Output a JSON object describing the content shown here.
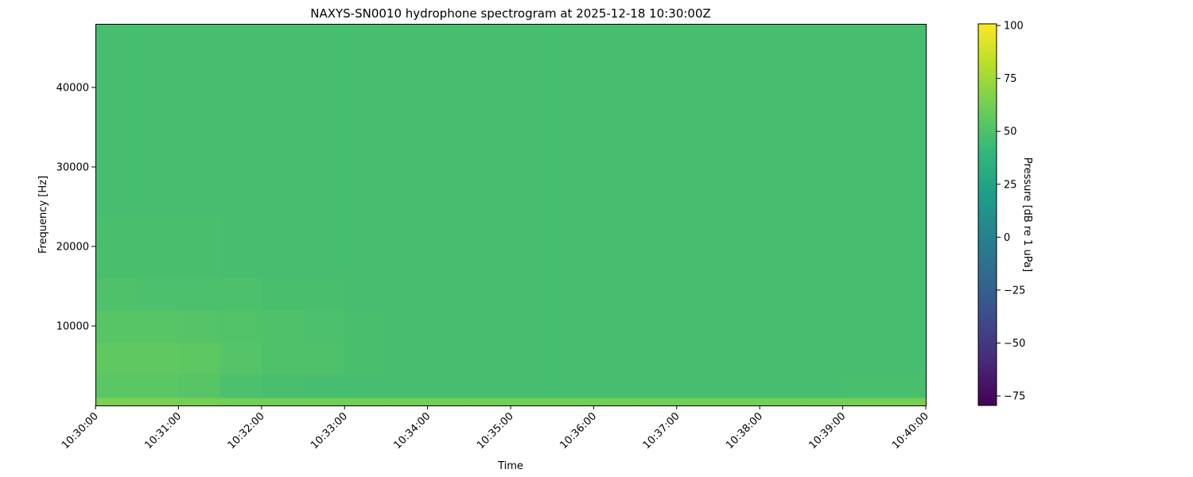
{
  "chart_data": {
    "type": "heatmap",
    "title": "NAXYS-SN0010 hydrophone spectrogram at 2025-12-18 10:30:00Z",
    "xlabel": "Time",
    "ylabel": "Frequency [Hz]",
    "colorbar_label": "Pressure [dB re 1 uPa]",
    "colormap": "viridis",
    "xlim": [
      "10:30:00",
      "10:40:00"
    ],
    "ylim": [
      0,
      48000
    ],
    "clim": [
      -79.5,
      100.8
    ],
    "x_ticks": [
      "10:30:00",
      "10:31:00",
      "10:32:00",
      "10:33:00",
      "10:34:00",
      "10:35:00",
      "10:36:00",
      "10:37:00",
      "10:38:00",
      "10:39:00",
      "10:40:00"
    ],
    "y_ticks": [
      10000,
      20000,
      30000,
      40000
    ],
    "colorbar_ticks": [
      -75,
      -50,
      -25,
      0,
      25,
      50,
      75,
      100
    ],
    "grid": false,
    "time_step_seconds": 30,
    "freq_edges_hz": [
      0,
      1000,
      4000,
      8000,
      12000,
      16000,
      24000,
      32000,
      40000,
      48000
    ],
    "values_db": [
      [
        64,
        64,
        63,
        62,
        62,
        62,
        62,
        62,
        62,
        62,
        62,
        62,
        62,
        62,
        62,
        62,
        62,
        62,
        63,
        63
      ],
      [
        54,
        54,
        53,
        49,
        48,
        47,
        47,
        47,
        47,
        47,
        47,
        47,
        47,
        47,
        47,
        47,
        47,
        47,
        48,
        48
      ],
      [
        56,
        56,
        55,
        52,
        50,
        50,
        48,
        47,
        47,
        47,
        47,
        47,
        47,
        47,
        47,
        47,
        47,
        47,
        47,
        47
      ],
      [
        53,
        53,
        52,
        51,
        50,
        49,
        48,
        47,
        47,
        47,
        47,
        47,
        47,
        47,
        47,
        47,
        47,
        47,
        47,
        47
      ],
      [
        50,
        49,
        49,
        49,
        48,
        48,
        47,
        47,
        47,
        47,
        47,
        47,
        47,
        47,
        47,
        47,
        47,
        47,
        47,
        47
      ],
      [
        48,
        48,
        48,
        47,
        47,
        47,
        47,
        47,
        47,
        47,
        47,
        47,
        47,
        47,
        47,
        47,
        47,
        47,
        47,
        47
      ],
      [
        47,
        47,
        47,
        47,
        47,
        47,
        47,
        47,
        47,
        47,
        47,
        47,
        47,
        47,
        47,
        47,
        47,
        47,
        47,
        47
      ],
      [
        47,
        47,
        47,
        47,
        47,
        47,
        47,
        47,
        47,
        47,
        47,
        47,
        47,
        47,
        47,
        47,
        47,
        47,
        47,
        47
      ],
      [
        47,
        47,
        47,
        47,
        47,
        47,
        47,
        47,
        47,
        47,
        47,
        47,
        47,
        47,
        47,
        47,
        47,
        47,
        47,
        47
      ]
    ]
  }
}
